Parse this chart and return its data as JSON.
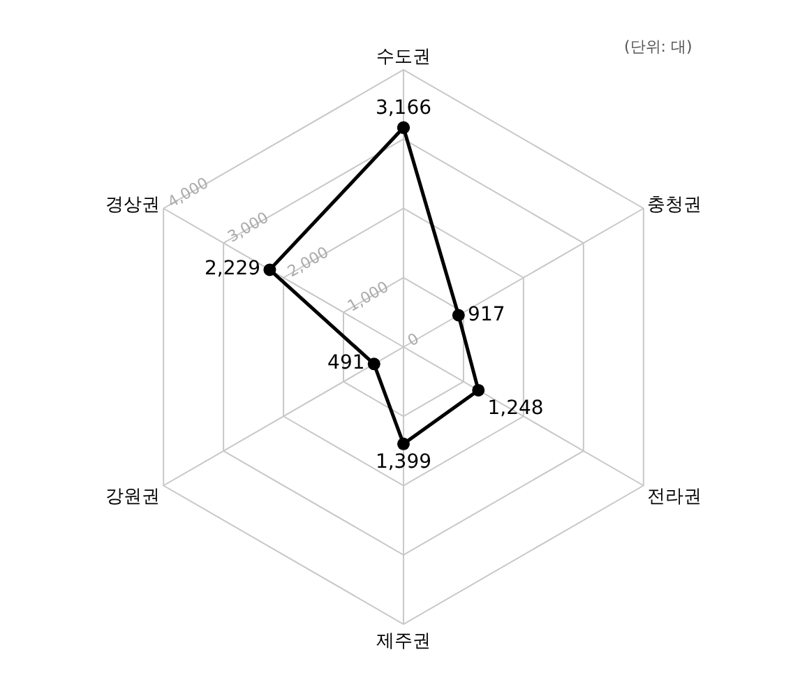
{
  "chart_data": {
    "type": "radar",
    "categories": [
      "수도권",
      "충청권",
      "전라권",
      "제주권",
      "강원권",
      "경상권"
    ],
    "series": [
      {
        "color": "#000000",
        "values": [
          3166,
          917,
          1248,
          1399,
          491,
          2229
        ],
        "value_labels": [
          "3,166",
          "917",
          "1,248",
          "1,399",
          "491",
          "2,229"
        ]
      }
    ],
    "ylim": [
      0,
      4000
    ],
    "yticks": [
      {
        "value": 0,
        "label": "0"
      },
      {
        "value": 1000,
        "label": "1,000"
      },
      {
        "value": 2000,
        "label": "2,000"
      },
      {
        "value": 3000,
        "label": "3,000"
      },
      {
        "value": 4000,
        "label": "4,000"
      }
    ],
    "grid": true,
    "marker": "circle",
    "line_style": "solid",
    "annotations": [
      "(단위: 대)"
    ]
  }
}
